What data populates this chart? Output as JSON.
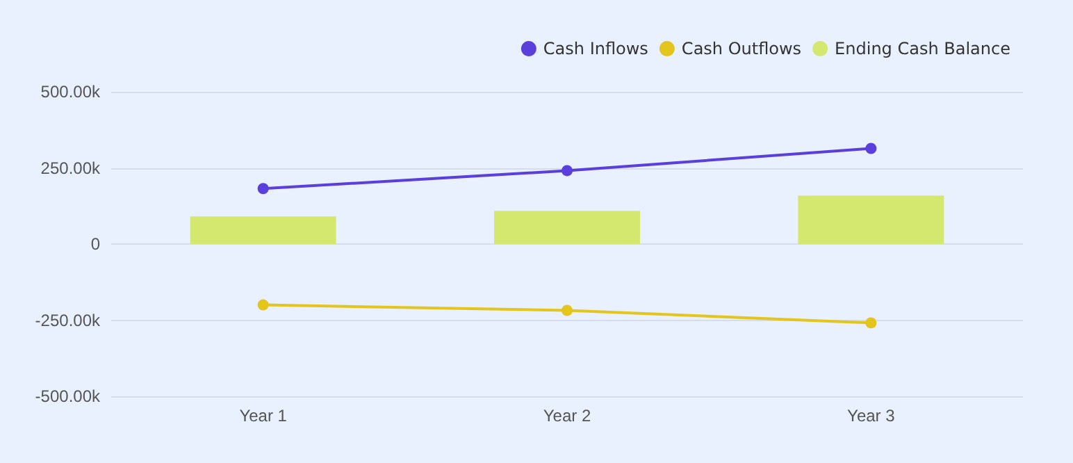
{
  "chart_data": {
    "type": "line",
    "categories": [
      "Year 1",
      "Year 2",
      "Year 3"
    ],
    "series": [
      {
        "name": "Cash Inflows",
        "color": "#5b3fdc",
        "values": [
          182,
          241,
          314
        ]
      },
      {
        "name": "Cash Outflows",
        "color": "#e3c51c",
        "values": [
          -200,
          -218,
          -259
        ]
      },
      {
        "name": "Ending Cash Balance",
        "type": "bar",
        "color": "#d4e86f",
        "values": [
          91,
          109,
          159
        ]
      }
    ],
    "ylim": [
      -500,
      500
    ],
    "yticks": [
      {
        "value": -500,
        "label": "-500.00k"
      },
      {
        "value": -250,
        "label": "-250.00k"
      },
      {
        "value": 0,
        "label": "0"
      },
      {
        "value": 250,
        "label": "250.00k"
      },
      {
        "value": 500,
        "label": "500.00k"
      }
    ],
    "grid": "y",
    "legend": "top right",
    "marker": "circle"
  }
}
